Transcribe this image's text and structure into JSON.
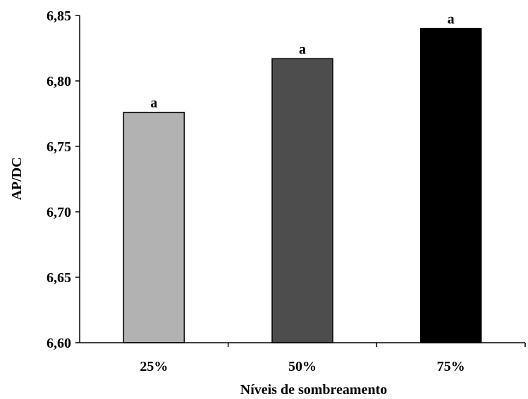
{
  "chart_data": {
    "type": "bar",
    "categories": [
      "25%",
      "50%",
      "75%"
    ],
    "values": [
      6.776,
      6.817,
      6.84
    ],
    "data_labels": [
      "a",
      "a",
      "a"
    ],
    "colors": [
      "#b2b2b2",
      "#4d4d4d",
      "#000000"
    ],
    "xlabel": "Níveis de sombreamento",
    "ylabel": "AP/DC",
    "ylim": [
      6.6,
      6.85
    ],
    "yticks": [
      "6,60",
      "6,65",
      "6,70",
      "6,75",
      "6,80",
      "6,85"
    ],
    "grid": false,
    "legend": "none"
  }
}
